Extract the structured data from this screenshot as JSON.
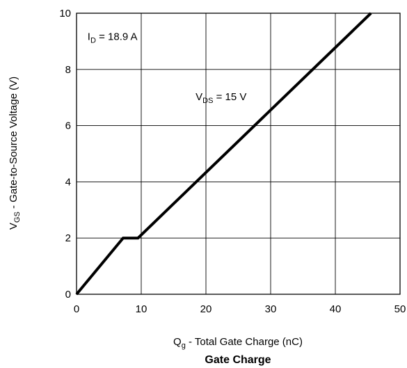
{
  "chart_data": {
    "type": "line",
    "title": "Gate Charge",
    "xlabel": {
      "main": "Q",
      "sub": "g",
      "rest": " - Total Gate Charge (nC)"
    },
    "ylabel": {
      "main": "V",
      "sub": "GS",
      "rest": " - Gate-to-Source Voltage (V)"
    },
    "xlim": [
      0,
      50
    ],
    "ylim": [
      0,
      10
    ],
    "xticks": [
      0,
      10,
      20,
      30,
      40,
      50
    ],
    "yticks": [
      0,
      2,
      4,
      6,
      8,
      10
    ],
    "grid": true,
    "series": [
      {
        "x": [
          0,
          7.2,
          9.5,
          45.5
        ],
        "y": [
          0,
          2.0,
          2.0,
          10.0
        ]
      }
    ],
    "annotations": [
      {
        "main": "I",
        "sub": "D",
        "rest": " = 18.9 A",
        "x": 1.7,
        "y": 9.05
      },
      {
        "main": "V",
        "sub": "DS",
        "rest": " = 15 V",
        "x": 18.4,
        "y": 6.9
      }
    ]
  }
}
